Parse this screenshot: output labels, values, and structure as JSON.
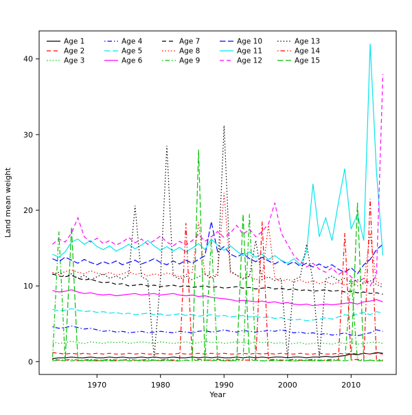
{
  "figure": {
    "xlabel": "Year",
    "ylabel": "Land mean weight"
  },
  "axes": {
    "x_ticks": [
      1970,
      1980,
      1990,
      2000,
      2010
    ],
    "y_ticks": [
      0,
      10,
      20,
      30,
      40
    ],
    "xlim": [
      1960.9,
      2017.1
    ],
    "ylim": [
      -1.7,
      43.7
    ]
  },
  "chart_data": {
    "type": "line",
    "title": "",
    "xlabel": "Year",
    "ylabel": "Land mean weight",
    "grid": false,
    "legend_position": "top-left",
    "legend_ncol": 5,
    "x": [
      1963,
      1964,
      1965,
      1966,
      1967,
      1968,
      1969,
      1970,
      1971,
      1972,
      1973,
      1974,
      1975,
      1976,
      1977,
      1978,
      1979,
      1980,
      1981,
      1982,
      1983,
      1984,
      1985,
      1986,
      1987,
      1988,
      1989,
      1990,
      1991,
      1992,
      1993,
      1994,
      1995,
      1996,
      1997,
      1998,
      1999,
      2000,
      2001,
      2002,
      2003,
      2004,
      2005,
      2006,
      2007,
      2008,
      2009,
      2010,
      2011,
      2012,
      2013,
      2014,
      2015
    ],
    "series": [
      {
        "name": "Age 1",
        "color": "#000000",
        "linetype": "solid",
        "values": [
          0.4,
          0.5,
          0.5,
          0.6,
          0.5,
          0.5,
          0.6,
          0.5,
          0.5,
          0.6,
          0.5,
          0.6,
          0.5,
          0.5,
          0.6,
          0.5,
          0.6,
          0.5,
          0.5,
          0.6,
          0.5,
          0.5,
          0.6,
          0.5,
          0.6,
          0.5,
          0.6,
          0.5,
          0.5,
          0.6,
          0.5,
          0.6,
          0.5,
          0.6,
          0.5,
          0.6,
          0.6,
          0.5,
          0.6,
          0.6,
          0.5,
          0.6,
          0.6,
          0.7,
          0.6,
          0.7,
          0.8,
          1.0,
          0.9,
          1.1,
          1.0,
          1.2,
          1.1
        ]
      },
      {
        "name": "Age 2",
        "color": "#FF0000",
        "linetype": "dashed",
        "values": [
          1.2,
          1.1,
          1.0,
          1.1,
          1.0,
          1.1,
          1.0,
          1.1,
          1.0,
          1.1,
          1.0,
          1.0,
          1.1,
          1.0,
          1.1,
          1.0,
          1.0,
          1.1,
          1.0,
          1.0,
          1.1,
          1.0,
          1.0,
          1.1,
          1.0,
          1.1,
          1.0,
          1.1,
          1.0,
          1.0,
          1.1,
          1.0,
          1.1,
          1.0,
          1.1,
          1.0,
          1.1,
          1.0,
          1.0,
          1.1,
          1.0,
          1.0,
          1.1,
          1.0,
          1.0,
          1.1,
          1.0,
          1.1,
          1.0,
          1.1,
          1.0,
          1.1,
          1.0
        ]
      },
      {
        "name": "Age 3",
        "color": "#00C000",
        "linetype": "dotted",
        "values": [
          2.6,
          2.4,
          2.5,
          2.7,
          2.5,
          2.4,
          2.6,
          2.5,
          2.4,
          2.6,
          2.5,
          2.6,
          2.4,
          2.5,
          2.6,
          2.5,
          2.4,
          2.6,
          2.5,
          2.4,
          2.5,
          2.6,
          2.4,
          2.5,
          2.7,
          2.5,
          2.6,
          2.4,
          2.5,
          2.6,
          2.5,
          2.4,
          2.6,
          2.5,
          2.6,
          2.4,
          2.5,
          2.3,
          2.4,
          2.5,
          2.3,
          2.4,
          2.5,
          2.4,
          2.3,
          2.5,
          2.4,
          2.5,
          2.3,
          2.4,
          2.5,
          2.6,
          2.4
        ]
      },
      {
        "name": "Age 4",
        "color": "#0000FF",
        "linetype": "dotdash",
        "values": [
          4.6,
          4.4,
          4.5,
          4.7,
          4.5,
          4.3,
          4.4,
          4.2,
          4.0,
          4.1,
          3.9,
          4.0,
          3.8,
          3.9,
          4.0,
          3.8,
          3.9,
          4.0,
          3.9,
          3.8,
          4.0,
          3.9,
          3.8,
          4.0,
          4.1,
          3.9,
          4.0,
          4.2,
          4.0,
          3.9,
          4.1,
          4.0,
          3.9,
          4.0,
          4.1,
          4.0,
          4.2,
          4.0,
          3.8,
          3.9,
          3.7,
          3.8,
          3.6,
          3.7,
          3.5,
          3.6,
          3.8,
          3.5,
          3.4,
          3.6,
          3.8,
          4.2,
          4.0
        ]
      },
      {
        "name": "Age 5",
        "color": "#00E5EE",
        "linetype": "longdash",
        "values": [
          6.9,
          6.7,
          6.8,
          7.0,
          6.8,
          6.6,
          6.7,
          6.5,
          6.6,
          6.4,
          6.5,
          6.3,
          6.4,
          6.2,
          6.3,
          6.4,
          6.2,
          6.3,
          6.1,
          6.2,
          6.3,
          6.1,
          6.2,
          6.0,
          6.1,
          6.2,
          6.0,
          6.1,
          5.9,
          6.0,
          6.1,
          5.9,
          6.0,
          5.8,
          5.9,
          5.7,
          5.8,
          5.6,
          5.5,
          5.6,
          5.4,
          5.5,
          5.6,
          5.8,
          5.6,
          5.9,
          6.2,
          6.0,
          6.3,
          6.5,
          6.2,
          6.6,
          6.4
        ]
      },
      {
        "name": "Age 6",
        "color": "#FF00FF",
        "linetype": "solid",
        "values": [
          9.4,
          9.2,
          9.3,
          9.5,
          9.2,
          9.0,
          9.1,
          8.9,
          8.8,
          8.9,
          8.7,
          8.8,
          8.9,
          9.0,
          8.8,
          8.9,
          9.0,
          8.8,
          8.9,
          9.0,
          8.8,
          8.7,
          8.8,
          8.6,
          8.7,
          8.5,
          8.4,
          8.3,
          8.2,
          8.0,
          8.1,
          8.0,
          7.9,
          8.0,
          7.8,
          7.9,
          7.7,
          7.8,
          7.6,
          7.5,
          7.6,
          7.4,
          7.5,
          7.6,
          7.5,
          7.6,
          7.7,
          7.8,
          7.6,
          7.9,
          8.0,
          8.2,
          7.9
        ]
      },
      {
        "name": "Age 7",
        "color": "#000000",
        "linetype": "dashed",
        "values": [
          11.6,
          11.3,
          11.2,
          11.4,
          11.0,
          10.8,
          10.9,
          10.6,
          10.4,
          10.5,
          10.2,
          10.3,
          10.0,
          10.1,
          10.2,
          10.0,
          10.1,
          9.9,
          10.0,
          10.1,
          9.9,
          10.0,
          9.8,
          9.9,
          10.0,
          9.8,
          9.9,
          9.7,
          9.8,
          9.9,
          9.7,
          9.8,
          9.6,
          9.7,
          9.8,
          9.6,
          9.7,
          9.5,
          9.6,
          9.4,
          9.5,
          9.3,
          9.4,
          9.5,
          9.3,
          9.4,
          9.2,
          9.3,
          9.1,
          9.2,
          9.0,
          9.1,
          8.9
        ]
      },
      {
        "name": "Age 8",
        "color": "#FF0000",
        "linetype": "dotted",
        "values": [
          11.8,
          11.5,
          11.9,
          12.1,
          11.8,
          11.6,
          12.0,
          11.7,
          11.5,
          11.8,
          11.4,
          11.6,
          11.9,
          11.5,
          11.7,
          11.3,
          11.6,
          11.4,
          11.7,
          11.5,
          11.2,
          11.5,
          11.8,
          18.4,
          11.5,
          11.2,
          11.6,
          22.3,
          11.8,
          11.4,
          11.0,
          11.3,
          10.8,
          11.2,
          18.0,
          11.0,
          10.6,
          10.9,
          10.5,
          10.8,
          10.4,
          10.7,
          10.3,
          10.6,
          10.2,
          10.5,
          10.1,
          10.4,
          10.0,
          10.3,
          17.0,
          10.5,
          10.2
        ]
      },
      {
        "name": "Age 9",
        "color": "#00C000",
        "linetype": "dotdash",
        "values": [
          0.2,
          17.2,
          0.2,
          0.1,
          0.2,
          0.1,
          0.2,
          0.1,
          0.1,
          0.2,
          0.1,
          0.2,
          0.1,
          0.1,
          0.2,
          0.1,
          0.2,
          0.1,
          0.2,
          0.1,
          0.1,
          0.2,
          0.1,
          0.2,
          0.1,
          16.3,
          0.2,
          0.1,
          0.2,
          0.1,
          0.2,
          19.5,
          0.2,
          0.1,
          0.2,
          0.1,
          0.2,
          0.1,
          0.1,
          0.2,
          0.1,
          0.2,
          0.1,
          0.2,
          0.1,
          0.2,
          0.1,
          11.0,
          0.2,
          0.1,
          0.2,
          0.1,
          0.2
        ]
      },
      {
        "name": "Age 10",
        "color": "#0000FF",
        "linetype": "longdash",
        "values": [
          13.6,
          13.2,
          13.8,
          13.4,
          13.0,
          13.5,
          13.1,
          12.8,
          13.2,
          12.9,
          13.3,
          12.8,
          13.1,
          13.4,
          12.9,
          13.2,
          13.6,
          13.1,
          12.8,
          13.3,
          12.9,
          13.4,
          13.0,
          13.5,
          14.0,
          18.5,
          14.5,
          15.2,
          14.2,
          13.8,
          14.3,
          13.6,
          13.2,
          13.8,
          13.3,
          12.9,
          13.4,
          12.8,
          13.2,
          12.6,
          13.0,
          12.5,
          12.9,
          12.4,
          12.8,
          12.2,
          11.8,
          12.4,
          11.6,
          12.8,
          13.5,
          14.8,
          15.5
        ]
      },
      {
        "name": "Age 11",
        "color": "#00E5EE",
        "linetype": "solid",
        "values": [
          14.2,
          13.8,
          14.5,
          15.8,
          16.2,
          15.5,
          16.0,
          15.2,
          14.8,
          15.3,
          14.6,
          15.0,
          15.5,
          14.9,
          15.4,
          16.0,
          15.3,
          14.7,
          15.2,
          14.6,
          15.1,
          14.5,
          15.0,
          15.6,
          14.8,
          16.2,
          15.4,
          14.7,
          15.3,
          14.6,
          14.0,
          14.5,
          13.8,
          14.2,
          13.5,
          14.0,
          13.4,
          13.0,
          13.6,
          12.8,
          14.5,
          23.5,
          16.5,
          19.0,
          16.0,
          21.0,
          25.5,
          17.5,
          19.5,
          16.0,
          42.0,
          25.0,
          14.0
        ]
      },
      {
        "name": "Age 12",
        "color": "#FF00FF",
        "linetype": "dashed",
        "values": [
          15.5,
          16.2,
          15.8,
          17.0,
          19.0,
          16.5,
          15.8,
          16.3,
          15.6,
          16.0,
          15.4,
          15.8,
          16.4,
          15.7,
          16.2,
          15.5,
          16.0,
          16.6,
          15.8,
          15.3,
          15.9,
          15.4,
          16.0,
          16.8,
          15.9,
          16.5,
          17.2,
          16.4,
          17.0,
          18.0,
          16.8,
          17.5,
          16.5,
          17.2,
          18.2,
          21.0,
          17.0,
          15.5,
          14.0,
          13.2,
          12.5,
          13.0,
          12.2,
          11.8,
          12.4,
          11.5,
          12.0,
          11.2,
          10.5,
          11.0,
          10.0,
          11.5,
          38.0
        ]
      },
      {
        "name": "Age 13",
        "color": "#000000",
        "linetype": "dotted",
        "values": [
          11.5,
          11.8,
          11.2,
          11.6,
          11.0,
          11.4,
          10.8,
          11.2,
          11.6,
          11.0,
          11.3,
          10.9,
          11.4,
          20.6,
          11.2,
          10.8,
          0.5,
          11.0,
          28.5,
          11.4,
          10.9,
          11.3,
          10.8,
          11.2,
          11.6,
          11.0,
          11.4,
          31.2,
          12.0,
          11.4,
          10.9,
          11.3,
          16.0,
          10.8,
          11.2,
          10.7,
          11.0,
          0.5,
          10.8,
          11.2,
          15.5,
          10.6,
          0.5,
          10.9,
          11.3,
          10.7,
          11.0,
          10.5,
          10.8,
          10.3,
          10.7,
          10.2,
          9.8
        ]
      },
      {
        "name": "Age 14",
        "color": "#FF0000",
        "linetype": "dotdash",
        "values": [
          0.3,
          0.2,
          0.2,
          0.3,
          0.2,
          0.2,
          0.3,
          0.2,
          0.2,
          0.3,
          0.2,
          0.2,
          0.3,
          0.2,
          0.2,
          0.3,
          0.2,
          0.2,
          0.3,
          0.2,
          0.2,
          18.3,
          0.2,
          0.3,
          0.2,
          0.2,
          0.3,
          0.2,
          0.2,
          0.3,
          0.2,
          0.2,
          0.3,
          18.5,
          0.2,
          0.3,
          0.2,
          0.2,
          0.3,
          0.2,
          0.2,
          0.3,
          0.2,
          0.2,
          0.3,
          0.2,
          17.0,
          0.2,
          0.3,
          0.2,
          21.5,
          0.3,
          0.2
        ]
      },
      {
        "name": "Age 15",
        "color": "#00C000",
        "linetype": "longdash",
        "values": [
          0.1,
          0.2,
          0.1,
          17.8,
          0.1,
          0.2,
          0.1,
          0.1,
          0.2,
          0.1,
          0.1,
          0.2,
          0.1,
          0.2,
          0.1,
          0.1,
          0.2,
          0.1,
          0.2,
          0.1,
          0.1,
          0.2,
          0.1,
          28.0,
          0.2,
          0.1,
          0.2,
          0.1,
          0.1,
          0.2,
          19.5,
          0.1,
          0.2,
          0.1,
          0.1,
          0.2,
          0.1,
          0.2,
          0.1,
          0.1,
          0.2,
          0.1,
          0.2,
          0.1,
          0.1,
          0.2,
          0.1,
          0.2,
          21.0,
          0.1,
          0.2,
          0.1,
          0.1
        ]
      }
    ]
  }
}
